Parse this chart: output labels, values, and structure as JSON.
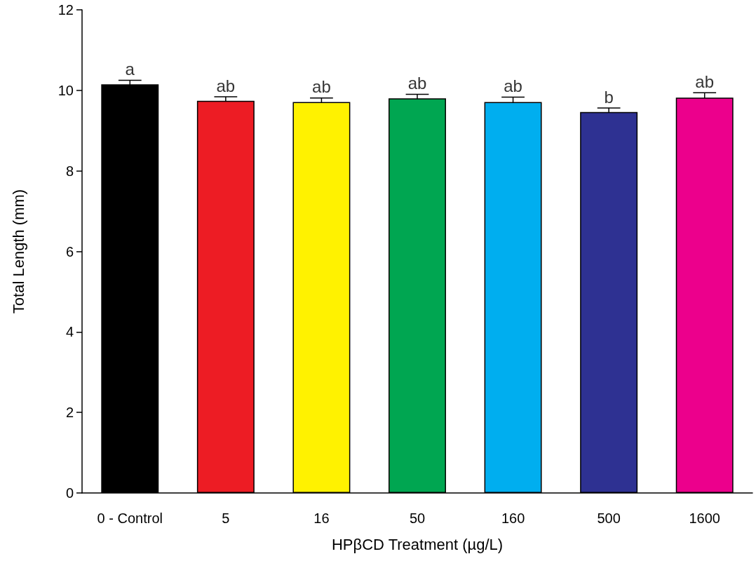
{
  "chart_data": {
    "type": "bar",
    "xlabel": "HPβCD Treatment (µg/L)",
    "ylabel": "Total Length (mm)",
    "categories": [
      "0 - Control",
      "5",
      "16",
      "50",
      "160",
      "500",
      "1600"
    ],
    "values": [
      10.15,
      9.74,
      9.71,
      9.8,
      9.71,
      9.46,
      9.82
    ],
    "colors": [
      "#000000",
      "#ed1c24",
      "#fff200",
      "#00a651",
      "#00aeef",
      "#2e3192",
      "#ec008c"
    ],
    "errors": [
      0.1,
      0.1,
      0.1,
      0.1,
      0.12,
      0.1,
      0.12
    ],
    "ylim": [
      0,
      12
    ],
    "yticks": [
      0,
      2,
      4,
      6,
      8,
      10,
      12
    ],
    "grid": false,
    "annotations": [
      {
        "text": "a",
        "x": "0 - Control",
        "y": 10.25
      },
      {
        "text": "ab",
        "x": "5",
        "y": 9.84
      },
      {
        "text": "ab",
        "x": "16",
        "y": 9.81
      },
      {
        "text": "ab",
        "x": "50",
        "y": 9.9
      },
      {
        "text": "ab",
        "x": "160",
        "y": 9.83
      },
      {
        "text": "b",
        "x": "500",
        "y": 9.56
      },
      {
        "text": "ab",
        "x": "1600",
        "y": 9.94
      }
    ]
  }
}
